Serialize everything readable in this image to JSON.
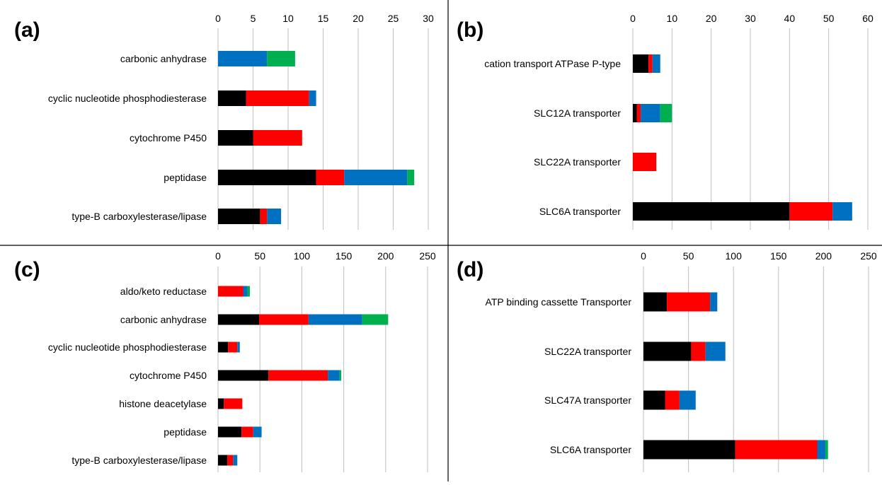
{
  "chart_data": [
    {
      "type": "bar",
      "orientation": "horizontal",
      "stacked": true,
      "panel_label": "(a)",
      "ticks": [
        "0",
        "5",
        "10",
        "15",
        "20",
        "25",
        "30"
      ],
      "xlim": [
        0,
        30
      ],
      "grid": true,
      "categories": [
        "carbonic anhydrase",
        "cyclic nucleotide phosphodiesterase",
        "cytochrome P450",
        "peptidase",
        "type-B carboxylesterase/lipase"
      ],
      "series": [
        {
          "color": "#000000",
          "values": [
            0,
            4,
            5,
            14,
            6
          ]
        },
        {
          "color": "#ff0000",
          "values": [
            0,
            9,
            7,
            4,
            1
          ]
        },
        {
          "color": "#0070c0",
          "values": [
            7,
            1,
            0,
            9,
            2
          ]
        },
        {
          "color": "#00b050",
          "values": [
            4,
            0,
            0,
            1,
            0
          ]
        }
      ]
    },
    {
      "type": "bar",
      "orientation": "horizontal",
      "stacked": true,
      "panel_label": "(b)",
      "ticks": [
        "0",
        "10",
        "20",
        "30",
        "40",
        "50",
        "60"
      ],
      "xlim": [
        0,
        60
      ],
      "grid": true,
      "categories": [
        "cation transport ATPase P-type",
        "SLC12A transporter",
        "SLC22A transporter",
        "SLC6A transporter"
      ],
      "series": [
        {
          "color": "#000000",
          "values": [
            4,
            1,
            0,
            40
          ]
        },
        {
          "color": "#ff0000",
          "values": [
            1,
            1,
            6,
            11
          ]
        },
        {
          "color": "#0070c0",
          "values": [
            2,
            5,
            0,
            5
          ]
        },
        {
          "color": "#00b050",
          "values": [
            0,
            3,
            0,
            0
          ]
        }
      ]
    },
    {
      "type": "bar",
      "orientation": "horizontal",
      "stacked": true,
      "panel_label": "(c)",
      "ticks": [
        "0",
        "50",
        "100",
        "150",
        "200",
        "250"
      ],
      "xlim": [
        0,
        250
      ],
      "grid": true,
      "categories": [
        "aldo/keto reductase",
        "carbonic anhydrase",
        "cyclic nucleotide phosphodiesterase",
        "cytochrome P450",
        "histone deacetylase",
        "peptidase",
        "type-B carboxylesterase/lipase"
      ],
      "series": [
        {
          "color": "#000000",
          "values": [
            0,
            49,
            12,
            60,
            7,
            28,
            11
          ]
        },
        {
          "color": "#ff0000",
          "values": [
            30,
            59,
            11,
            71,
            22,
            14,
            7
          ]
        },
        {
          "color": "#0070c0",
          "values": [
            5,
            64,
            3,
            14,
            0,
            10,
            5
          ]
        },
        {
          "color": "#00b050",
          "values": [
            3,
            31,
            0,
            2,
            0,
            0,
            0
          ]
        }
      ]
    },
    {
      "type": "bar",
      "orientation": "horizontal",
      "stacked": true,
      "panel_label": "(d)",
      "ticks": [
        "0",
        "50",
        "100",
        "150",
        "200",
        "250"
      ],
      "xlim": [
        0,
        250
      ],
      "grid": true,
      "categories": [
        "ATP binding cassette Transporter",
        "SLC22A transporter",
        "SLC47A transporter",
        "SLC6A transporter"
      ],
      "series": [
        {
          "color": "#000000",
          "values": [
            26,
            53,
            24,
            102
          ]
        },
        {
          "color": "#ff0000",
          "values": [
            48,
            16,
            16,
            91
          ]
        },
        {
          "color": "#0070c0",
          "values": [
            8,
            22,
            18,
            9
          ]
        },
        {
          "color": "#00b050",
          "values": [
            0,
            0,
            0,
            3
          ]
        }
      ]
    }
  ]
}
